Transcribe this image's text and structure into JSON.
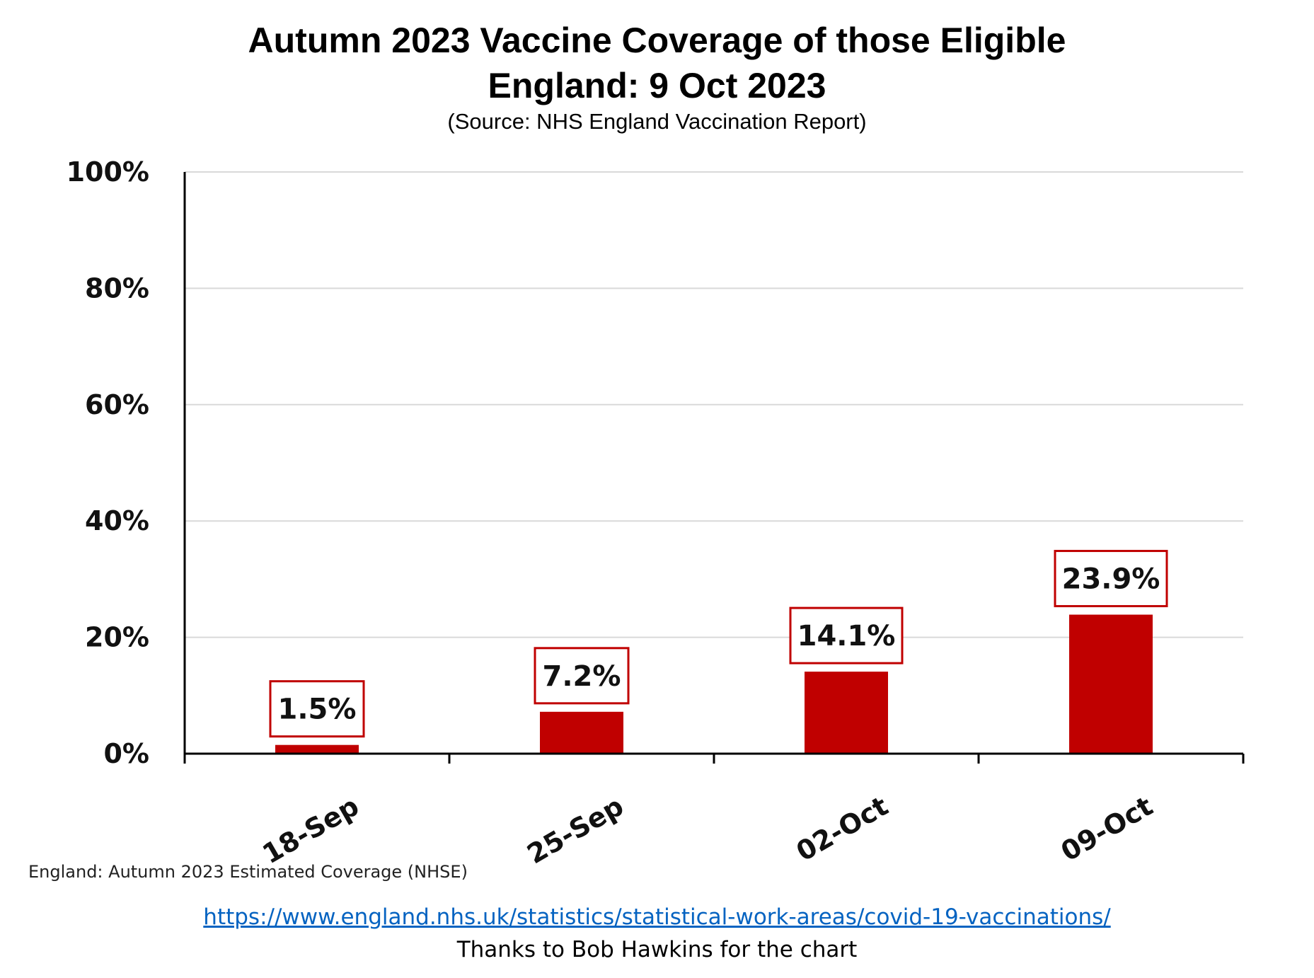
{
  "header": {
    "title_line1": "Autumn 2023 Vaccine Coverage of those Eligible",
    "title_line2": "England: 9 Oct 2023",
    "source": "(Source: NHS England Vaccination Report)"
  },
  "chart_data": {
    "type": "bar",
    "categories": [
      "18-Sep",
      "25-Sep",
      "02-Oct",
      "09-Oct"
    ],
    "values": [
      1.5,
      7.2,
      14.1,
      23.9
    ],
    "data_labels": [
      "1.5%",
      "7.2%",
      "14.1%",
      "23.9%"
    ],
    "y_ticks": [
      0,
      20,
      40,
      60,
      80,
      100
    ],
    "y_tick_labels": [
      "0%",
      "20%",
      "40%",
      "60%",
      "80%",
      "100%"
    ],
    "ylim": [
      0,
      100
    ],
    "grid": true,
    "bar_color": "#C00000",
    "label_border_color": "#C00000",
    "x_label_rotation": "diagonal"
  },
  "footer": {
    "footnote": "England: Autumn 2023 Estimated Coverage (NHSE)",
    "link": "https://www.england.nhs.uk/statistics/statistical-work-areas/covid-19-vaccinations/",
    "thanks": "Thanks to Bob Hawkins for the chart"
  }
}
